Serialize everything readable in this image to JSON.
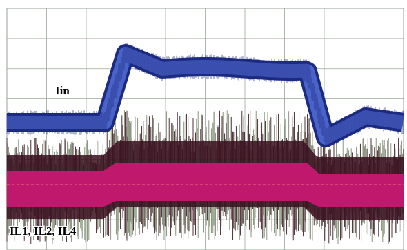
{
  "labels": {
    "input_current": "Iin",
    "inductor_currents": "IL1, IL2, IL4"
  }
}
